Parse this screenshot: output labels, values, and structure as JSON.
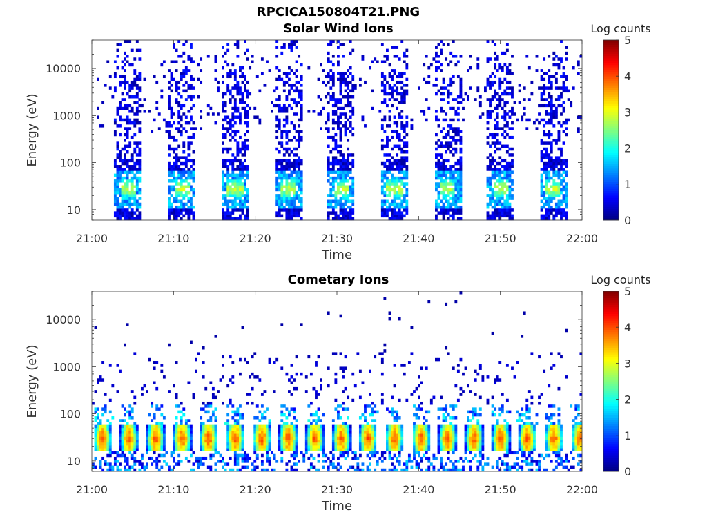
{
  "figure": {
    "title": "RPCICA150804T21.PNG"
  },
  "chart_data": [
    {
      "type": "heatmap",
      "title": "Solar Wind Ions",
      "xlabel": "Time",
      "ylabel": "Energy (eV)",
      "yscale": "log",
      "x_ticks": [
        "21:00",
        "21:10",
        "21:20",
        "21:30",
        "21:40",
        "21:50",
        "22:00"
      ],
      "x_range_minutes": [
        0,
        60
      ],
      "y_ticks": [
        {
          "value": 10,
          "label": "10"
        },
        {
          "value": 100,
          "label": "100"
        },
        {
          "value": 1000,
          "label": "1000"
        },
        {
          "value": 10000,
          "label": "10000"
        }
      ],
      "ylim": [
        6,
        40000
      ],
      "colorbar": {
        "label": "Log counts",
        "range": [
          0,
          5
        ],
        "ticks": [
          "0",
          "1",
          "2",
          "3",
          "4",
          "5"
        ],
        "colormap": "jet"
      },
      "bursts_start_minutes": [
        2.8,
        9.4,
        15.9,
        22.4,
        28.9,
        35.4,
        41.9,
        48.4,
        54.8
      ],
      "burst_width_minutes": 3.3,
      "peak_energy_eV": 28,
      "peak_log_counts": 2.6
    },
    {
      "type": "heatmap",
      "title": "Cometary Ions",
      "xlabel": "Time",
      "ylabel": "Energy (eV)",
      "yscale": "log",
      "x_ticks": [
        "21:00",
        "21:10",
        "21:20",
        "21:30",
        "21:40",
        "21:50",
        "22:00"
      ],
      "x_range_minutes": [
        0,
        60
      ],
      "y_ticks": [
        {
          "value": 10,
          "label": "10"
        },
        {
          "value": 100,
          "label": "100"
        },
        {
          "value": 1000,
          "label": "1000"
        },
        {
          "value": 10000,
          "label": "10000"
        }
      ],
      "ylim": [
        6,
        40000
      ],
      "colorbar": {
        "label": "Log counts",
        "range": [
          0,
          5
        ],
        "ticks": [
          "0",
          "1",
          "2",
          "3",
          "4",
          "5"
        ],
        "colormap": "jet"
      },
      "pulse_period_minutes": 3.25,
      "peak_energy_eV": 30,
      "peak_log_counts": 3.7
    }
  ]
}
